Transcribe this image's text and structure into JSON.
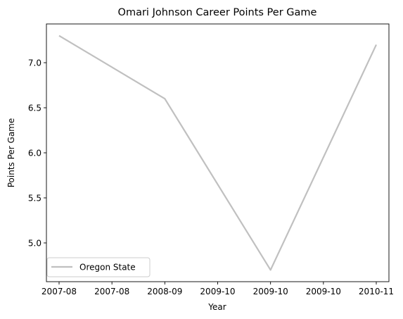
{
  "chart_data": {
    "type": "line",
    "title": "Omari Johnson Career Points Per Game",
    "xlabel": "Year",
    "ylabel": "Points Per Game",
    "x": [
      "2007-08",
      "2008-09",
      "2009-10",
      "2010-11"
    ],
    "x_tick_labels": [
      "2007-08",
      "2007-08",
      "2008-09",
      "2009-10",
      "2009-10",
      "2009-10",
      "2010-11"
    ],
    "series": [
      {
        "name": "Oregon State",
        "values": [
          7.3,
          6.6,
          4.7,
          7.2
        ],
        "color": "#c0c0c0"
      }
    ],
    "ylim": [
      4.57,
      7.43
    ],
    "y_ticks": [
      5.0,
      5.5,
      6.0,
      6.5,
      7.0
    ],
    "y_tick_labels": [
      "5.0",
      "5.5",
      "6.0",
      "6.5",
      "7.0"
    ],
    "grid": false,
    "legend_position": "lower-left"
  }
}
